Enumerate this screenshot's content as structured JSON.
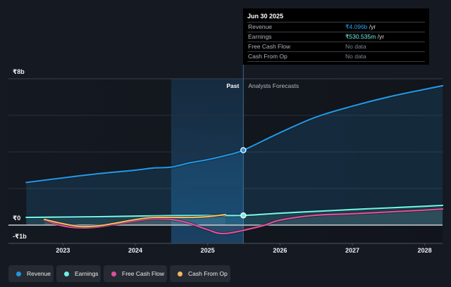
{
  "tooltip": {
    "date": "Jun 30 2025",
    "rows": [
      {
        "label": "Revenue",
        "value": "₹4.096b",
        "unit": " /yr",
        "color": "#2aa0ee"
      },
      {
        "label": "Earnings",
        "value": "₹530.535m",
        "unit": " /yr",
        "color": "#6ff0e6"
      },
      {
        "label": "Free Cash Flow",
        "value": "No data",
        "unit": "",
        "color": "#7d8289"
      },
      {
        "label": "Cash From Op",
        "value": "No data",
        "unit": "",
        "color": "#7d8289"
      }
    ]
  },
  "legend": [
    {
      "label": "Revenue",
      "color": "#2394df"
    },
    {
      "label": "Earnings",
      "color": "#6ff0e6"
    },
    {
      "label": "Free Cash Flow",
      "color": "#e0509c"
    },
    {
      "label": "Cash From Op",
      "color": "#f3b862"
    }
  ],
  "chart_data": {
    "type": "line",
    "title": "",
    "xlabel": "",
    "ylabel": "",
    "xlim": [
      "2022-04-01",
      "2028-03-31"
    ],
    "ylim": [
      -1,
      8
    ],
    "grid": true,
    "gridlines": [
      2,
      4,
      6,
      8
    ],
    "yticks": [
      {
        "value": 8,
        "label": "₹8b"
      },
      {
        "value": 0,
        "label": "₹0"
      },
      {
        "value": -1,
        "label": "-₹1b"
      }
    ],
    "xticks": [
      {
        "date": "2023-01-01",
        "label": "2023"
      },
      {
        "date": "2024-01-01",
        "label": "2024"
      },
      {
        "date": "2025-01-01",
        "label": "2025"
      },
      {
        "date": "2026-01-01",
        "label": "2026"
      },
      {
        "date": "2027-01-01",
        "label": "2027"
      },
      {
        "date": "2028-01-01",
        "label": "2028"
      }
    ],
    "current_date": "2025-06-30",
    "past_band": {
      "from": "2024-06-30",
      "to": "2025-06-30",
      "label": "Past"
    },
    "forecast_label": "Analysts Forecasts",
    "units": "₹ billions",
    "series": [
      {
        "name": "Revenue",
        "color": "#2394df",
        "marker": true,
        "past": [
          [
            "2022-06-30",
            2.33
          ],
          [
            "2022-12-31",
            2.58
          ],
          [
            "2023-06-30",
            2.81
          ],
          [
            "2023-12-31",
            3.0
          ],
          [
            "2024-03-31",
            3.12
          ],
          [
            "2024-06-30",
            3.17
          ],
          [
            "2024-09-30",
            3.4
          ],
          [
            "2024-12-31",
            3.58
          ],
          [
            "2025-03-31",
            3.8
          ],
          [
            "2025-06-30",
            4.096
          ]
        ],
        "forecast": [
          [
            "2025-06-30",
            4.096
          ],
          [
            "2025-12-31",
            5.05
          ],
          [
            "2026-06-30",
            5.9
          ],
          [
            "2026-12-31",
            6.5
          ],
          [
            "2027-06-30",
            7.0
          ],
          [
            "2027-12-31",
            7.42
          ],
          [
            "2028-03-31",
            7.62
          ]
        ]
      },
      {
        "name": "Earnings",
        "color": "#6ff0e6",
        "marker": true,
        "past": [
          [
            "2022-06-30",
            0.42
          ],
          [
            "2022-12-31",
            0.44
          ],
          [
            "2023-06-30",
            0.46
          ],
          [
            "2023-12-31",
            0.49
          ],
          [
            "2024-06-30",
            0.52
          ],
          [
            "2024-12-31",
            0.53
          ],
          [
            "2025-06-30",
            0.531
          ]
        ],
        "forecast": [
          [
            "2025-06-30",
            0.531
          ],
          [
            "2025-12-31",
            0.65
          ],
          [
            "2026-06-30",
            0.75
          ],
          [
            "2026-12-31",
            0.85
          ],
          [
            "2027-06-30",
            0.94
          ],
          [
            "2027-12-31",
            1.03
          ],
          [
            "2028-03-31",
            1.08
          ]
        ]
      },
      {
        "name": "Free Cash Flow",
        "color": "#e0509c",
        "marker": false,
        "past": [
          [
            "2022-09-30",
            0.27
          ],
          [
            "2022-12-31",
            -0.04
          ],
          [
            "2023-03-31",
            -0.15
          ],
          [
            "2023-06-30",
            -0.1
          ],
          [
            "2023-09-30",
            0.06
          ],
          [
            "2023-12-31",
            0.22
          ],
          [
            "2024-03-31",
            0.34
          ],
          [
            "2024-06-30",
            0.31
          ],
          [
            "2024-09-30",
            0.1
          ],
          [
            "2024-12-31",
            -0.25
          ],
          [
            "2025-03-31",
            -0.46
          ]
        ],
        "forecast": [
          [
            "2025-03-31",
            -0.46
          ],
          [
            "2025-09-30",
            -0.05
          ],
          [
            "2025-12-31",
            0.27
          ],
          [
            "2026-06-30",
            0.54
          ],
          [
            "2026-12-31",
            0.62
          ],
          [
            "2027-12-31",
            0.82
          ],
          [
            "2028-03-31",
            0.88
          ]
        ]
      },
      {
        "name": "Cash From Op",
        "color": "#f3b862",
        "marker": false,
        "past": [
          [
            "2022-09-30",
            0.31
          ],
          [
            "2022-12-31",
            0.08
          ],
          [
            "2023-03-31",
            -0.08
          ],
          [
            "2023-06-30",
            -0.04
          ],
          [
            "2023-09-30",
            0.12
          ],
          [
            "2023-12-31",
            0.3
          ],
          [
            "2024-03-31",
            0.42
          ],
          [
            "2024-06-30",
            0.42
          ],
          [
            "2024-09-30",
            0.42
          ],
          [
            "2024-12-31",
            0.46
          ],
          [
            "2025-03-31",
            0.58
          ]
        ],
        "forecast": []
      }
    ]
  }
}
